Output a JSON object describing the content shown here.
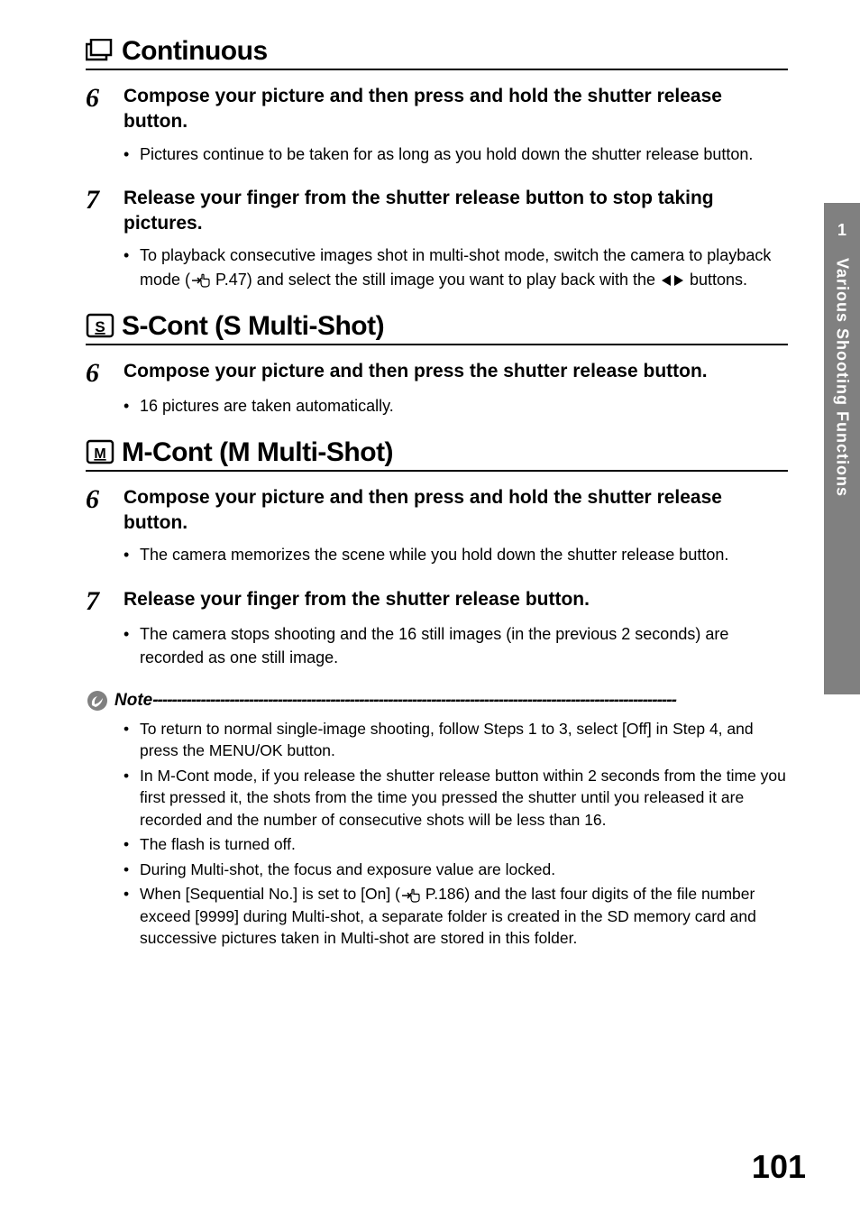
{
  "sideTab": {
    "number": "1",
    "text": "Various Shooting Functions"
  },
  "sections": [
    {
      "iconType": "continuous",
      "title": "Continuous",
      "steps": [
        {
          "num": "6",
          "text": "Compose your picture and then press and hold the shutter release button.",
          "bullets": [
            {
              "parts": [
                {
                  "t": "text",
                  "v": "Pictures continue to be taken for as long as you hold down the shutter release button."
                }
              ]
            }
          ]
        },
        {
          "num": "7",
          "text": "Release your finger from the shutter release button to stop taking pictures.",
          "bullets": [
            {
              "parts": [
                {
                  "t": "text",
                  "v": "To playback consecutive images shot in multi-shot mode, switch the camera to playback mode ("
                },
                {
                  "t": "hand"
                },
                {
                  "t": "text",
                  "v": "P.47) and select the still image you want to play back with the "
                },
                {
                  "t": "lr"
                },
                {
                  "t": "text",
                  "v": " buttons."
                }
              ]
            }
          ]
        }
      ]
    },
    {
      "iconType": "scont",
      "title": "S-Cont (S Multi-Shot)",
      "steps": [
        {
          "num": "6",
          "text": "Compose your picture and then press the shutter release button.",
          "bullets": [
            {
              "parts": [
                {
                  "t": "text",
                  "v": "16 pictures are taken automatically."
                }
              ]
            }
          ]
        }
      ]
    },
    {
      "iconType": "mcont",
      "title": "M-Cont (M Multi-Shot)",
      "steps": [
        {
          "num": "6",
          "text": "Compose your picture and then press and hold the shutter release button.",
          "bullets": [
            {
              "parts": [
                {
                  "t": "text",
                  "v": "The camera memorizes the scene while you hold down the shutter release button."
                }
              ]
            }
          ]
        },
        {
          "num": "7",
          "text": "Release your finger from the shutter release button.",
          "bullets": [
            {
              "parts": [
                {
                  "t": "text",
                  "v": "The camera stops shooting and the 16 still images (in the previous 2 seconds) are recorded as one still image."
                }
              ]
            }
          ]
        }
      ]
    }
  ],
  "note": {
    "label": "Note",
    "items": [
      {
        "parts": [
          {
            "t": "text",
            "v": "To return to normal single-image shooting, follow Steps 1 to 3, select [Off] in Step 4, and press the MENU/OK button."
          }
        ]
      },
      {
        "parts": [
          {
            "t": "text",
            "v": "In M-Cont mode, if you release the shutter release button within 2 seconds from the time you first pressed it, the shots from the time you pressed the shutter until you released it are recorded and the number of consecutive shots will be less than 16."
          }
        ]
      },
      {
        "parts": [
          {
            "t": "text",
            "v": "The flash is turned off."
          }
        ]
      },
      {
        "parts": [
          {
            "t": "text",
            "v": "During Multi-shot, the focus and exposure value are locked."
          }
        ]
      },
      {
        "parts": [
          {
            "t": "text",
            "v": "When [Sequential No.] is set to [On] ("
          },
          {
            "t": "hand"
          },
          {
            "t": "text",
            "v": "P.186) and the last four digits of the file number exceed [9999] during Multi-shot, a separate folder is created in the SD memory card and successive pictures taken in Multi-shot are stored in this folder."
          }
        ]
      }
    ]
  },
  "pageNumber": "101"
}
